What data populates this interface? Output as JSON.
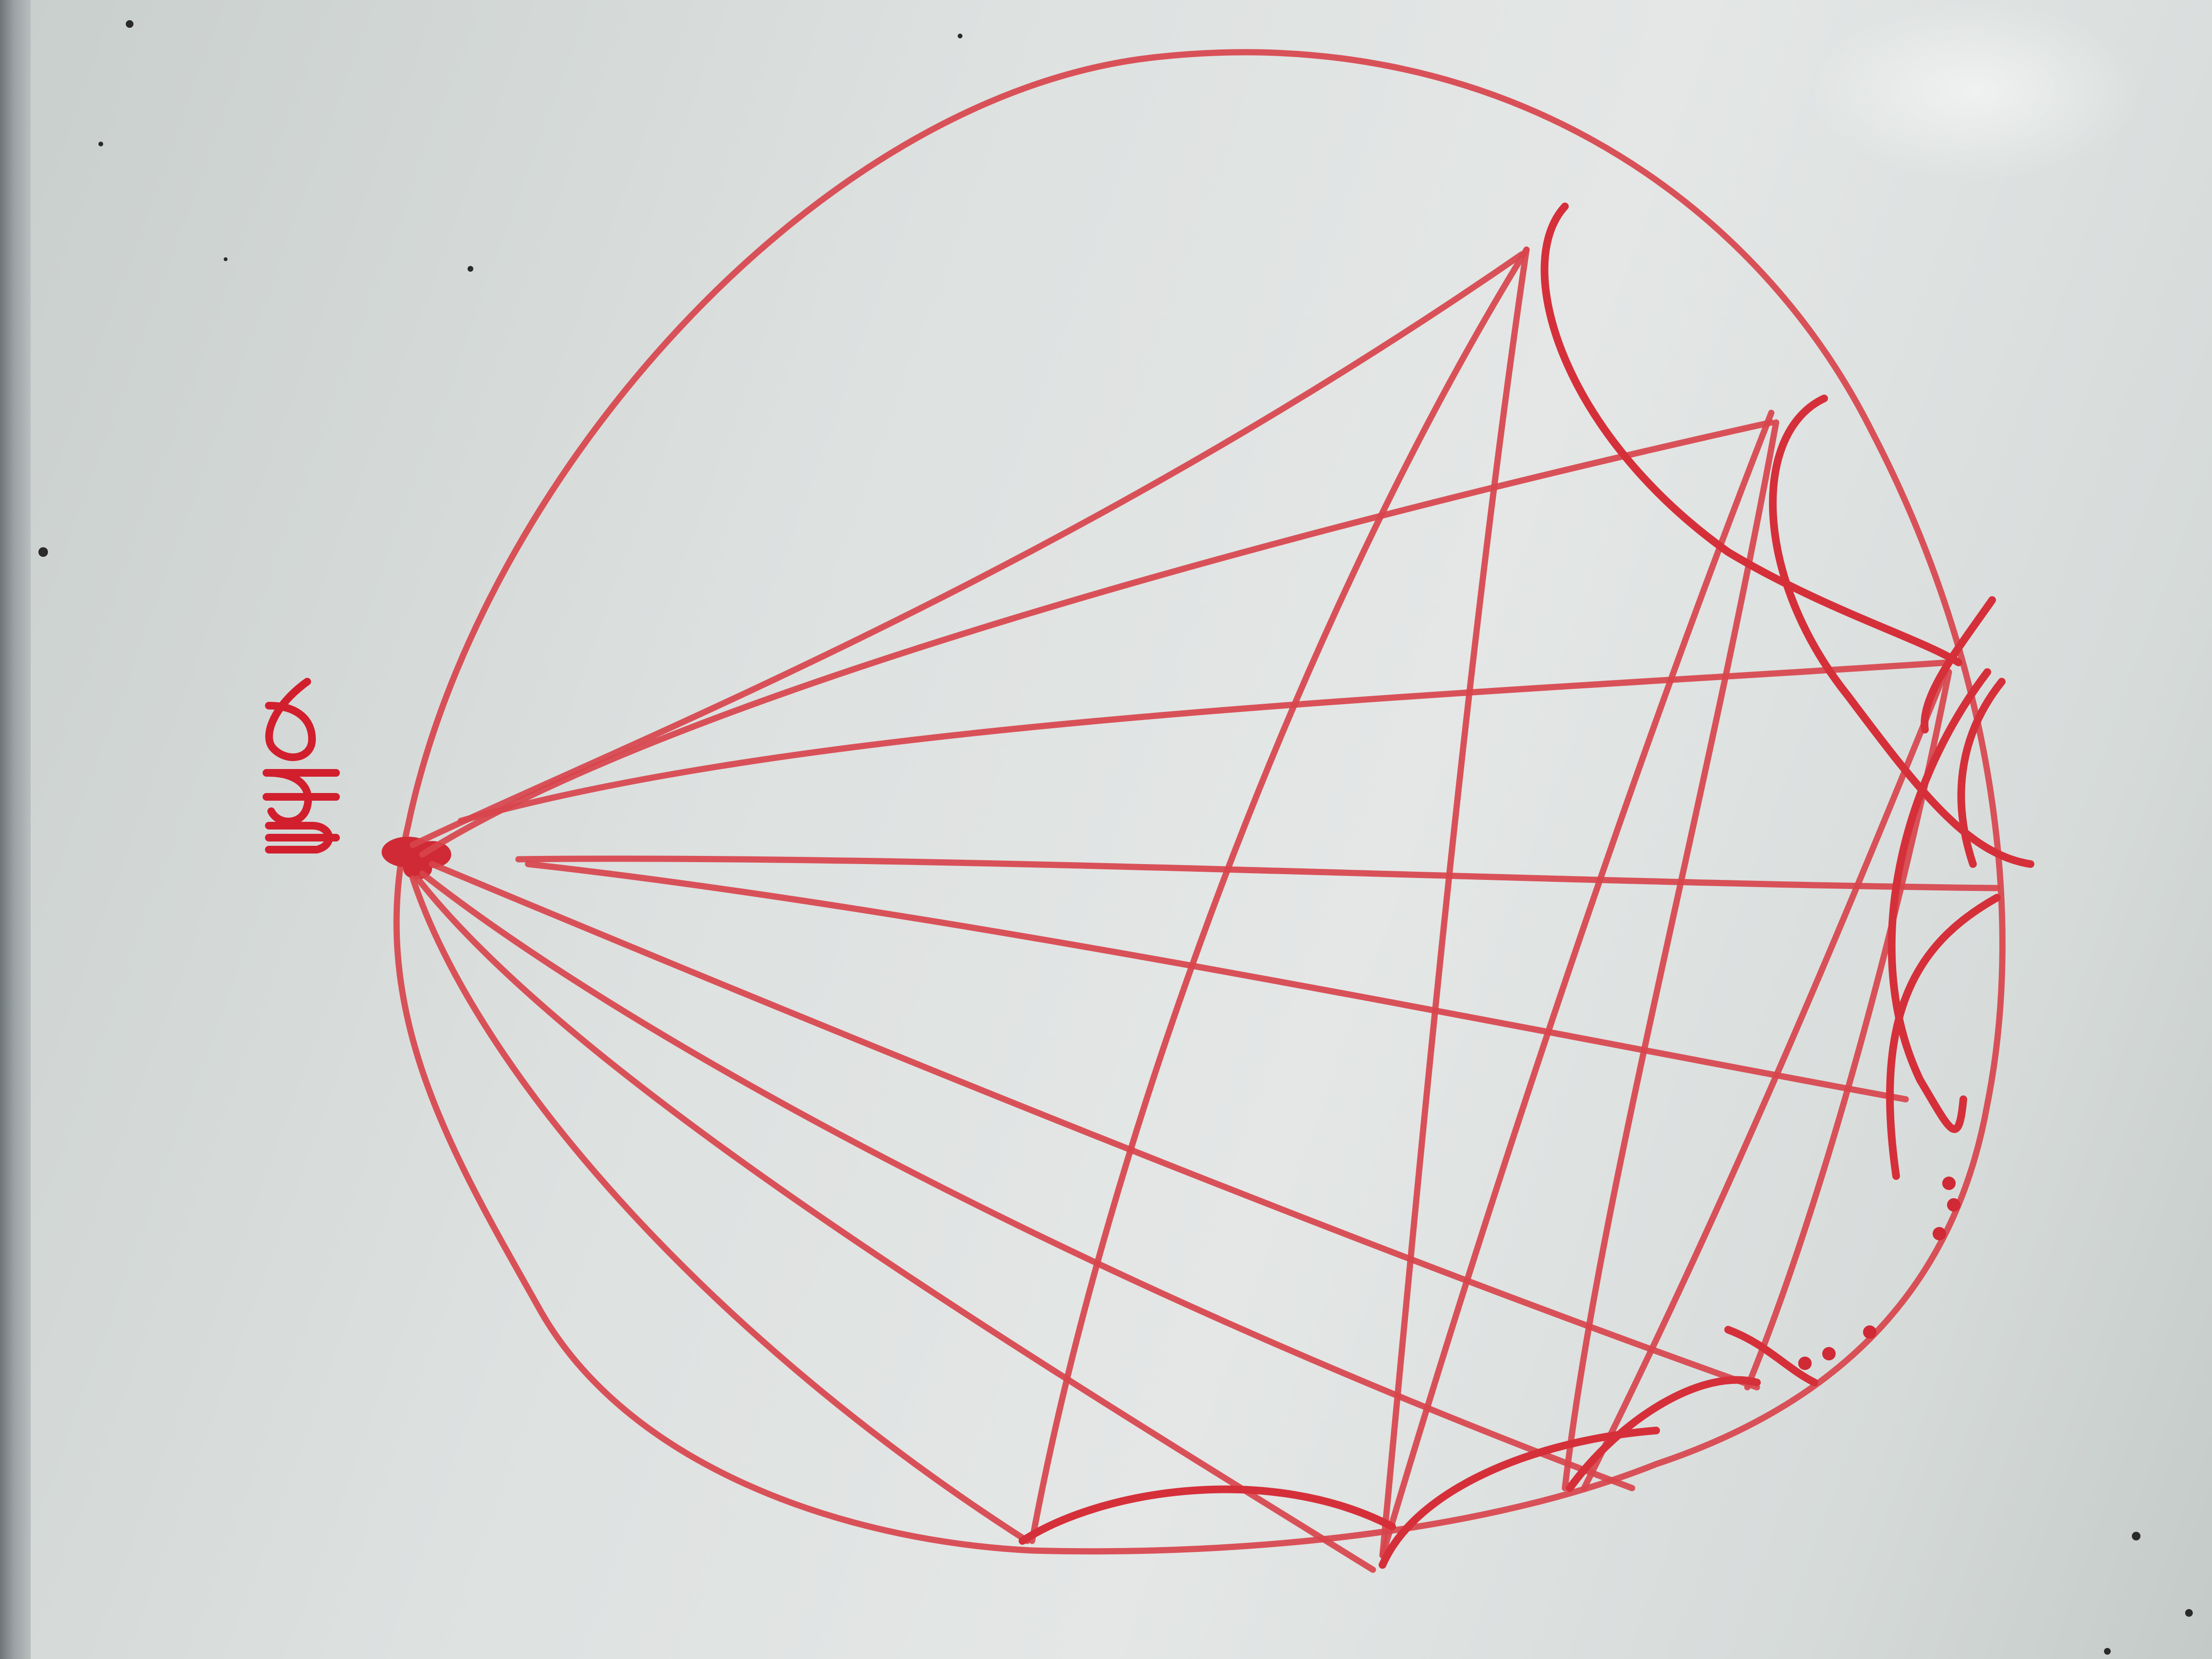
{
  "photo": {
    "subject": "whiteboard",
    "marker_color": "#d8444c",
    "board_color": "#dde1e0",
    "vertex_label_text": "bq ρ"
  }
}
